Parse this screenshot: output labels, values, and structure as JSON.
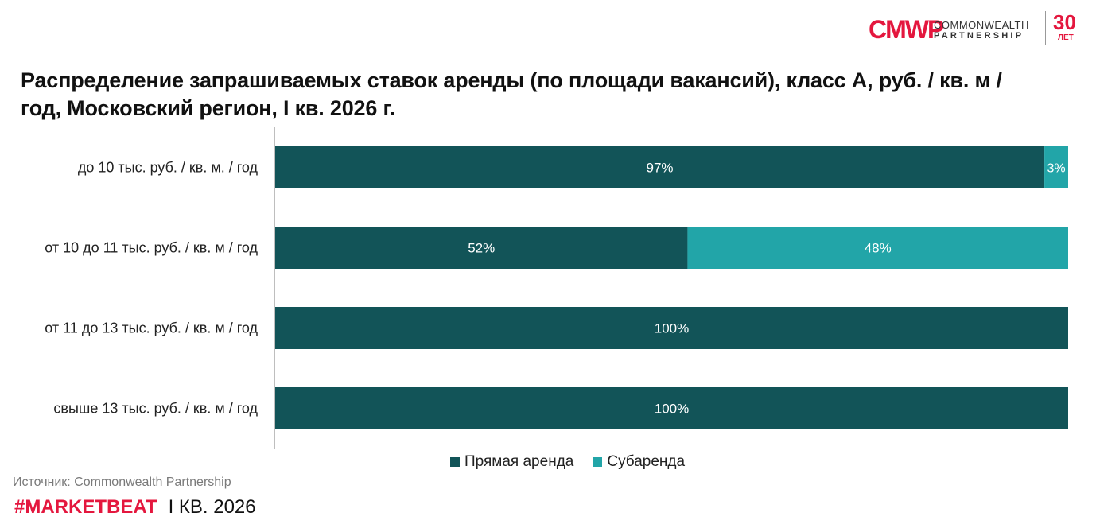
{
  "brand": {
    "logo_mark": "CMWP",
    "name_line1": "COMMONWEALTH",
    "name_line2": "PARTNERSHIP",
    "years": "30",
    "years_label": "ЛЕТ",
    "accent": "#e4173e"
  },
  "chart_data": {
    "type": "bar",
    "orientation": "horizontal",
    "stacked": true,
    "title": "Распределение запрашиваемых ставок аренды (по площади вакансий), класс А, руб. / кв. м / год, Московский регион, I кв. 2026 г.",
    "categories": [
      "до 10 тыс. руб. / кв. м. / год",
      "от 10 до 11 тыс. руб. / кв. м / год",
      "от 11 до 13 тыс. руб. / кв. м / год",
      "свыше 13 тыс. руб. / кв. м / год"
    ],
    "series": [
      {
        "name": "Прямая аренда",
        "values": [
          97,
          52,
          100,
          100
        ],
        "labels": [
          "97%",
          "52%",
          "100%",
          "100%"
        ],
        "color": "#125458"
      },
      {
        "name": "Субаренда",
        "values": [
          3,
          48,
          0,
          0
        ],
        "labels": [
          "3%",
          "48%",
          "",
          ""
        ],
        "color": "#22a5a8"
      }
    ],
    "xlim": [
      0,
      100
    ],
    "grid": false,
    "legend_position": "bottom"
  },
  "footer": {
    "source": "Источник: Commonwealth Partnership",
    "hashtag": "#MARKETBEAT",
    "period": "I КВ. 2026"
  }
}
